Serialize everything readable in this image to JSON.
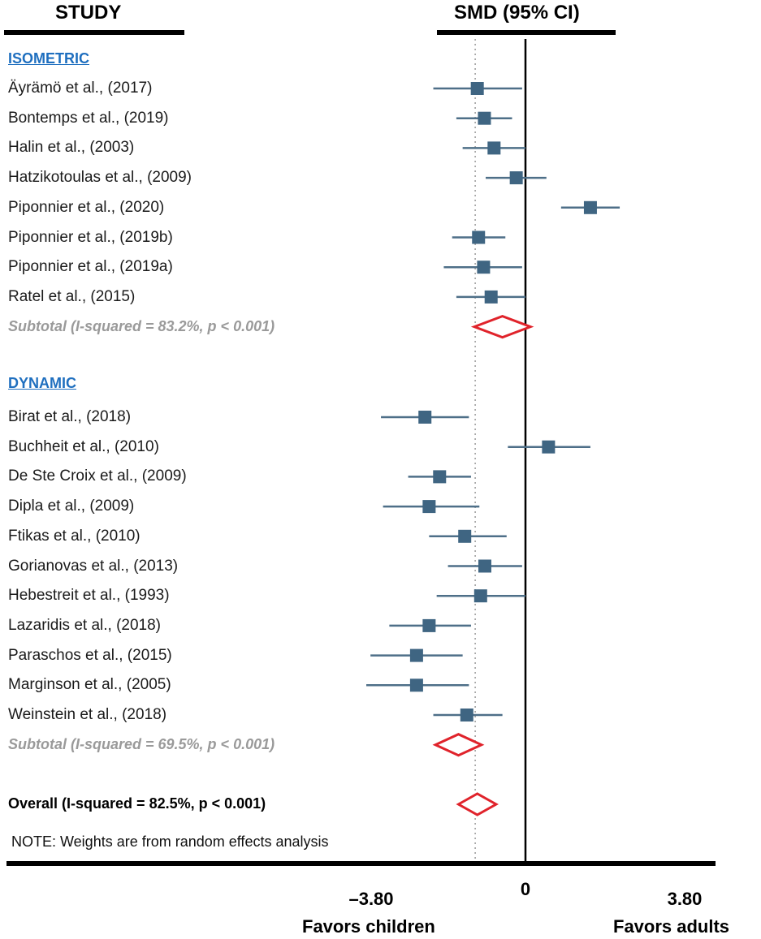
{
  "headers": {
    "study": "STUDY",
    "smd": "SMD (95% CI)"
  },
  "chart_data": {
    "type": "forest",
    "xlim": [
      -3.8,
      3.8
    ],
    "reference_line": 0,
    "dotted_line": -1.2,
    "axis": {
      "tick_labels": [
        "–3.80",
        "0",
        "3.80"
      ],
      "tick_values": [
        -3.8,
        0,
        3.8
      ]
    },
    "favors": {
      "left": "Favors children",
      "right": "Favors adults"
    },
    "groups": [
      {
        "name": "ISOMETRIC",
        "studies": [
          {
            "label": "Äyrämö et al., (2017)",
            "smd": -1.15,
            "lo": -2.2,
            "hi": -0.08
          },
          {
            "label": "Bontemps et al., (2019)",
            "smd": -0.98,
            "lo": -1.65,
            "hi": -0.32
          },
          {
            "label": "Halin et al., (2003)",
            "smd": -0.75,
            "lo": -1.5,
            "hi": 0.0
          },
          {
            "label": "Hatzikotoulas et al., (2009)",
            "smd": -0.22,
            "lo": -0.95,
            "hi": 0.5
          },
          {
            "label": "Piponnier et al., (2020)",
            "smd": 1.55,
            "lo": 0.85,
            "hi": 2.25
          },
          {
            "label": "Piponnier et al., (2019b)",
            "smd": -1.12,
            "lo": -1.75,
            "hi": -0.48
          },
          {
            "label": "Piponnier et al., (2019a)",
            "smd": -1.0,
            "lo": -1.95,
            "hi": -0.08
          },
          {
            "label": "Ratel et al., (2015)",
            "smd": -0.82,
            "lo": -1.65,
            "hi": 0.0
          }
        ],
        "subtotal": {
          "label": "Subtotal (I-squared = 83.2%, p < 0.001)",
          "smd": -0.55,
          "lo": -1.22,
          "hi": 0.12
        }
      },
      {
        "name": "DYNAMIC",
        "studies": [
          {
            "label": "Birat et al., (2018)",
            "smd": -2.4,
            "lo": -3.45,
            "hi": -1.35
          },
          {
            "label": "Buchheit et al., (2010)",
            "smd": 0.55,
            "lo": -0.42,
            "hi": 1.55
          },
          {
            "label": "De Ste Croix et al., (2009)",
            "smd": -2.05,
            "lo": -2.8,
            "hi": -1.3
          },
          {
            "label": "Dipla et al., (2009)",
            "smd": -2.3,
            "lo": -3.4,
            "hi": -1.1
          },
          {
            "label": "Ftikas et al., (2010)",
            "smd": -1.45,
            "lo": -2.3,
            "hi": -0.45
          },
          {
            "label": "Gorianovas et al., (2013)",
            "smd": -0.97,
            "lo": -1.85,
            "hi": -0.08
          },
          {
            "label": "Hebestreit et al., (1993)",
            "smd": -1.07,
            "lo": -2.12,
            "hi": 0.0
          },
          {
            "label": "Lazaridis et al., (2018)",
            "smd": -2.3,
            "lo": -3.25,
            "hi": -1.3
          },
          {
            "label": "Paraschos et al., (2015)",
            "smd": -2.6,
            "lo": -3.7,
            "hi": -1.5
          },
          {
            "label": "Marginson et al., (2005)",
            "smd": -2.6,
            "lo": -3.8,
            "hi": -1.35
          },
          {
            "label": "Weinstein et al., (2018)",
            "smd": -1.4,
            "lo": -2.2,
            "hi": -0.55
          }
        ],
        "subtotal": {
          "label": "Subtotal (I-squared = 69.5%, p < 0.001)",
          "smd": -1.6,
          "lo": -2.15,
          "hi": -1.05
        }
      }
    ],
    "overall": {
      "label": "Overall (I-squared = 82.5%, p < 0.001)",
      "smd": -1.15,
      "lo": -1.6,
      "hi": -0.7
    },
    "note": "NOTE: Weights are from random effects analysis"
  },
  "colors": {
    "marker": "#3f6582",
    "ci_line": "#4e6f88",
    "diamond": "#e0232b",
    "section": "#1f6fbf",
    "subtotal_text": "#9a9a9a"
  }
}
